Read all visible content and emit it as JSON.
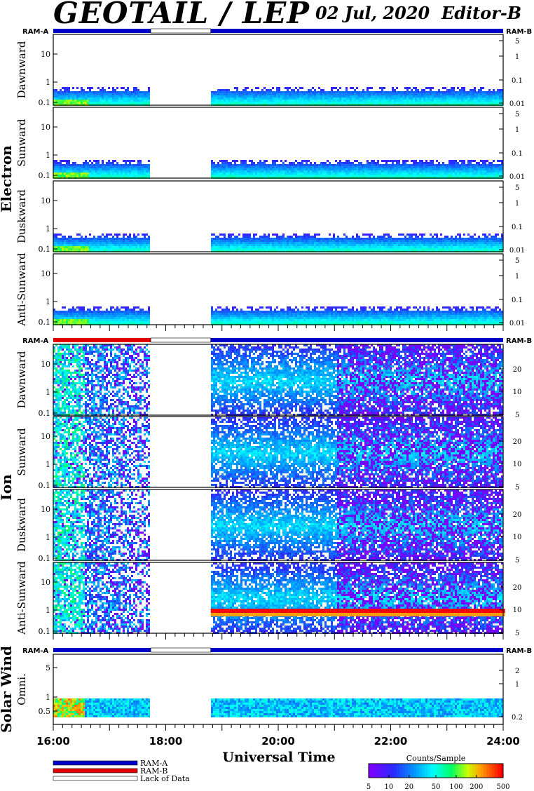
{
  "title": "GEOTAIL / LEP",
  "date": "02 Jul, 2020",
  "editor": "Editor-B",
  "ram_a_label": "RAM-A",
  "ram_b_label": "RAM-B",
  "xlabel": "Universal Time",
  "x_ticks": [
    "16:00",
    "18:00",
    "20:00",
    "22:00",
    "24:00"
  ],
  "groups": [
    {
      "label": "Electron",
      "panels": [
        "Dawnward",
        "Sunward",
        "Duskward",
        "Anti-Sunward"
      ]
    },
    {
      "label": "Ion",
      "panels": [
        "Dawnward",
        "Sunward",
        "Duskward",
        "Anti-Sunward"
      ]
    },
    {
      "label": "Solar Wind",
      "panels": [
        "Omni."
      ]
    }
  ],
  "legend": {
    "items": [
      {
        "label": "RAM-A",
        "color": "#0000c8"
      },
      {
        "label": "RAM-B",
        "color": "#e00000"
      },
      {
        "label": "Lack of Data",
        "color": "#ffffff"
      }
    ],
    "colorbar_title": "Counts/Sample",
    "colorbar_ticks": [
      "5",
      "10",
      "20",
      "50",
      "100",
      "200",
      "500"
    ]
  },
  "chart_data": {
    "type": "heatmap",
    "x_range": [
      "16:00",
      "24:00"
    ],
    "data_gap": [
      "17:44",
      "18:48"
    ],
    "colorbar_range": [
      5,
      500
    ],
    "electron": {
      "left_axis": {
        "ticks": [
          "10",
          "1",
          "0.1"
        ]
      },
      "right_axis": {
        "ticks": [
          "5",
          "1",
          "0.1",
          "0.01"
        ]
      },
      "panels": [
        "Dawnward",
        "Sunward",
        "Duskward",
        "Anti-Sunward"
      ]
    },
    "ion": {
      "left_axis": {
        "ticks": [
          "10",
          "1",
          "0.1"
        ]
      },
      "right_axis": {
        "ticks": [
          "20",
          "10",
          "5"
        ]
      },
      "panels": [
        "Dawnward",
        "Sunward",
        "Duskward",
        "Anti-Sunward"
      ]
    },
    "solar_wind": {
      "left_axis": {
        "ticks": [
          "5",
          "1",
          "0.5"
        ]
      },
      "right_axis": {
        "ticks": [
          "2",
          "1",
          "0.2"
        ]
      },
      "panels": [
        "Omni."
      ]
    }
  }
}
